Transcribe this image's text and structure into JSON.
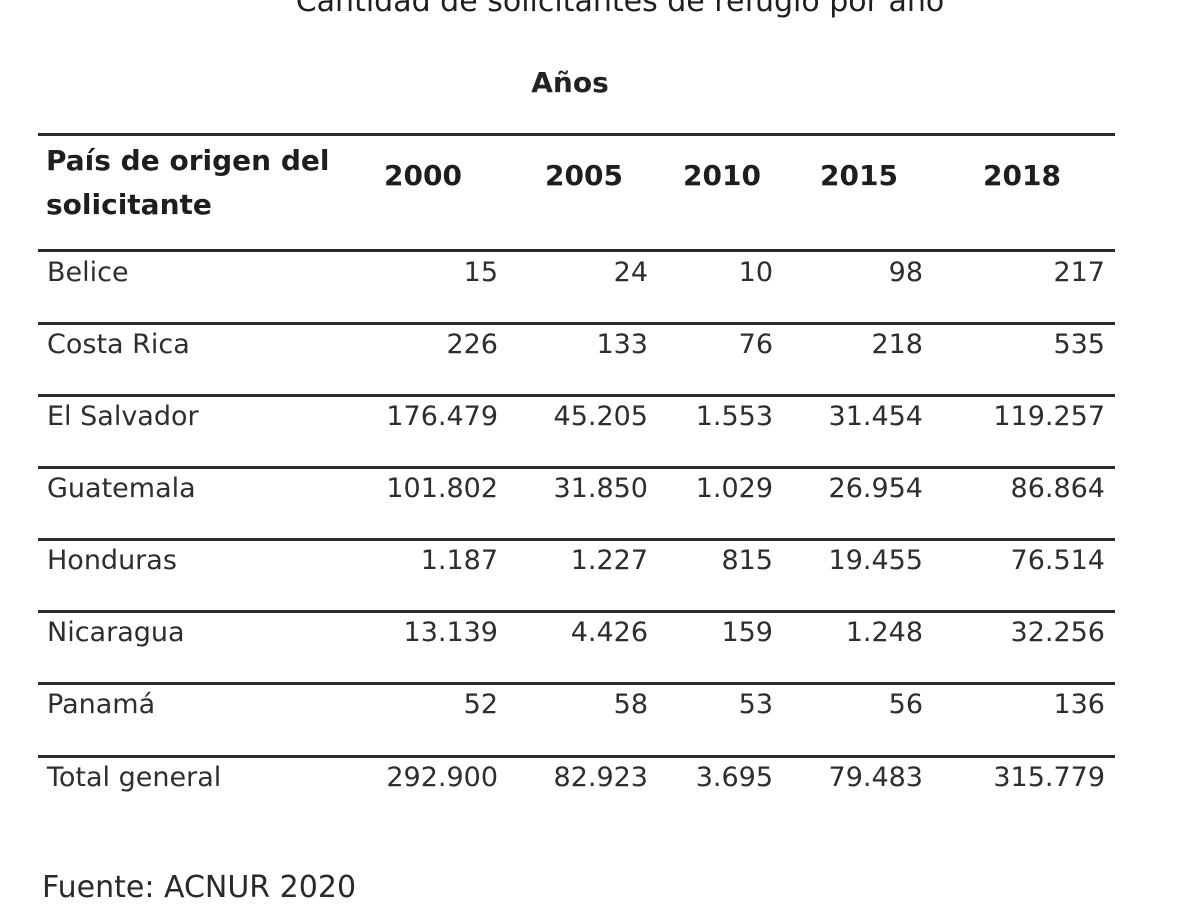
{
  "title": "Cantidad de solicitantes de refugio por año",
  "super_header": "Años",
  "table": {
    "first_header_line1": "País de origen del",
    "first_header_line2": "solicitante",
    "years": [
      "2000",
      "2005",
      "2010",
      "2015",
      "2018"
    ],
    "rows": [
      {
        "country": "Belice",
        "values": [
          "15",
          "24",
          "10",
          "98",
          "217"
        ]
      },
      {
        "country": "Costa Rica",
        "values": [
          "226",
          "133",
          "76",
          "218",
          "535"
        ]
      },
      {
        "country": "El Salvador",
        "values": [
          "176.479",
          "45.205",
          "1.553",
          "31.454",
          "119.257"
        ]
      },
      {
        "country": "Guatemala",
        "values": [
          "101.802",
          "31.850",
          "1.029",
          "26.954",
          "86.864"
        ]
      },
      {
        "country": "Honduras",
        "values": [
          "1.187",
          "1.227",
          "815",
          "19.455",
          "76.514"
        ]
      },
      {
        "country": "Nicaragua",
        "values": [
          "13.139",
          "4.426",
          "159",
          "1.248",
          "32.256"
        ]
      },
      {
        "country": "Panamá",
        "values": [
          "52",
          "58",
          "53",
          "56",
          "136"
        ]
      },
      {
        "country": "Total general",
        "values": [
          "292.900",
          "82.923",
          "3.695",
          "79.483",
          "315.779"
        ]
      }
    ]
  },
  "source": "Fuente: ACNUR 2020"
}
